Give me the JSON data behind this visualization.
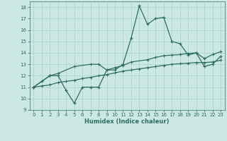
{
  "xlabel": "Humidex (Indice chaleur)",
  "xlim": [
    -0.5,
    23.5
  ],
  "ylim": [
    9,
    18.5
  ],
  "xticks": [
    0,
    1,
    2,
    3,
    4,
    5,
    6,
    7,
    8,
    9,
    10,
    11,
    12,
    13,
    14,
    15,
    16,
    17,
    18,
    19,
    20,
    21,
    22,
    23
  ],
  "yticks": [
    9,
    10,
    11,
    12,
    13,
    14,
    15,
    16,
    17,
    18
  ],
  "bg_color": "#cce8e4",
  "line_color": "#2d6e62",
  "grid_color": "#b0d4ce",
  "line1_x": [
    0,
    1,
    2,
    3,
    4,
    5,
    6,
    7,
    8,
    9,
    10,
    11,
    12,
    13,
    14,
    15,
    16,
    17,
    18,
    19,
    20,
    21,
    22,
    23
  ],
  "line1_y": [
    11.0,
    11.5,
    12.0,
    12.0,
    10.7,
    9.6,
    11.0,
    11.0,
    11.0,
    12.5,
    12.5,
    13.0,
    15.3,
    18.1,
    16.5,
    17.0,
    17.1,
    15.0,
    14.8,
    13.8,
    14.0,
    12.8,
    13.0,
    13.7
  ],
  "line2_x": [
    0,
    2,
    3,
    5,
    7,
    8,
    9,
    10,
    11,
    12,
    14,
    15,
    16,
    17,
    18,
    19,
    20,
    21,
    22,
    23
  ],
  "line2_y": [
    11.0,
    12.0,
    12.2,
    12.8,
    13.0,
    13.0,
    12.5,
    12.7,
    12.9,
    13.2,
    13.4,
    13.6,
    13.75,
    13.8,
    13.85,
    13.95,
    14.0,
    13.5,
    13.85,
    14.1
  ],
  "line3_x": [
    0,
    1,
    2,
    3,
    4,
    5,
    6,
    7,
    8,
    9,
    10,
    11,
    12,
    13,
    14,
    15,
    16,
    17,
    18,
    19,
    20,
    21,
    22,
    23
  ],
  "line3_y": [
    11.0,
    11.1,
    11.2,
    11.4,
    11.5,
    11.6,
    11.75,
    11.85,
    12.0,
    12.1,
    12.25,
    12.4,
    12.5,
    12.6,
    12.7,
    12.8,
    12.9,
    13.0,
    13.05,
    13.1,
    13.15,
    13.15,
    13.2,
    13.35
  ]
}
